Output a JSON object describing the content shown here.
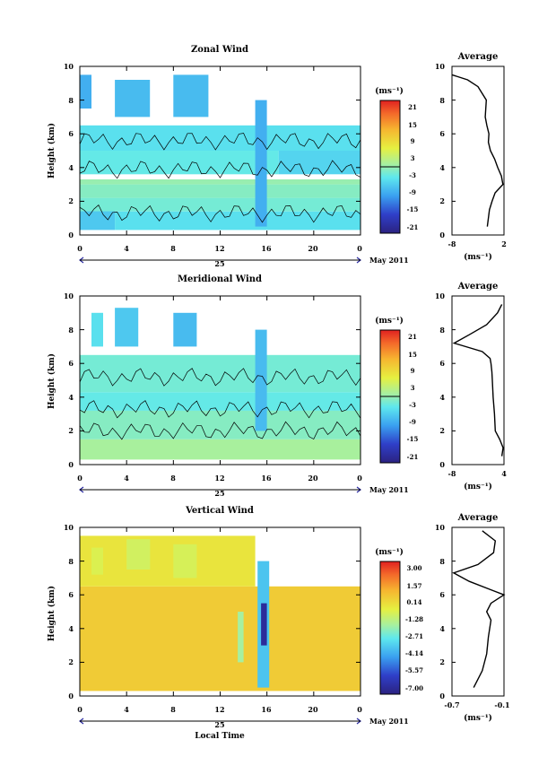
{
  "figure": {
    "date_label": "May 2011",
    "day_label": "25",
    "xlabel": "Local Time",
    "units": "(ms⁻¹)"
  },
  "panels": [
    {
      "title": "Zonal Wind",
      "ylabel": "Height (km)",
      "cbar_title": "(ms⁻¹)",
      "avg_title": "Average",
      "avg_xlabel": "(ms⁻¹)",
      "x_ticks": [
        "0",
        "4",
        "8",
        "12",
        "16",
        "20",
        "0"
      ],
      "y_ticks": [
        "0",
        "2",
        "4",
        "6",
        "8",
        "10"
      ],
      "cbar_ticks": [
        "21",
        "15",
        "9",
        "3",
        "-3",
        "-9",
        "-15",
        "-21"
      ],
      "avg_x_ticks": [
        "-8",
        "2"
      ]
    },
    {
      "title": "Meridional Wind",
      "ylabel": "Height (km)",
      "cbar_title": "(ms⁻¹)",
      "avg_title": "Average",
      "avg_xlabel": "(ms⁻¹)",
      "x_ticks": [
        "0",
        "4",
        "8",
        "12",
        "16",
        "20",
        "0"
      ],
      "y_ticks": [
        "0",
        "2",
        "4",
        "6",
        "8",
        "10"
      ],
      "cbar_ticks": [
        "21",
        "15",
        "9",
        "3",
        "-3",
        "-9",
        "-15",
        "-21"
      ],
      "avg_x_ticks": [
        "-8",
        "4"
      ]
    },
    {
      "title": "Vertical Wind",
      "ylabel": "Height (km)",
      "cbar_title": "(ms⁻¹)",
      "avg_title": "Average",
      "avg_xlabel": "(ms⁻¹)",
      "x_ticks": [
        "0",
        "4",
        "8",
        "12",
        "16",
        "20",
        "0"
      ],
      "y_ticks": [
        "0",
        "2",
        "4",
        "6",
        "8",
        "10"
      ],
      "cbar_ticks": [
        "3.00",
        "1.57",
        "0.14",
        "-1.28",
        "-2.71",
        "-4.14",
        "-5.57",
        "-7.00"
      ],
      "avg_x_ticks": [
        "-0.7",
        "-0.1"
      ]
    }
  ],
  "chart_data": [
    {
      "type": "heatmap",
      "title": "Zonal Wind",
      "xlabel": "",
      "ylabel": "Height (km)",
      "xlim": [
        0,
        24
      ],
      "ylim": [
        0,
        10
      ],
      "colorbar_range": [
        -21,
        21
      ],
      "cells": [
        {
          "x0": 0,
          "x1": 3,
          "y0": 0.3,
          "y1": 2.0,
          "v": -6
        },
        {
          "x0": 3,
          "x1": 24,
          "y0": 0.3,
          "y1": 1.4,
          "v": -4
        },
        {
          "x0": 0,
          "x1": 24,
          "y0": 1.4,
          "y1": 2.2,
          "v": -2
        },
        {
          "x0": 0,
          "x1": 24,
          "y0": 2.2,
          "y1": 3.0,
          "v": -1
        },
        {
          "x0": 0,
          "x1": 24,
          "y0": 3.0,
          "y1": 3.3,
          "v": 0
        },
        {
          "x0": 0,
          "x1": 17,
          "y0": 3.6,
          "y1": 5.0,
          "v": -3
        },
        {
          "x0": 17,
          "x1": 24,
          "y0": 3.6,
          "y1": 5.0,
          "v": -5
        },
        {
          "x0": 0,
          "x1": 24,
          "y0": 5.0,
          "y1": 6.5,
          "v": -4
        },
        {
          "x0": 0,
          "x1": 1,
          "y0": 7.5,
          "y1": 9.5,
          "v": -8
        },
        {
          "x0": 3,
          "x1": 6,
          "y0": 7.0,
          "y1": 9.2,
          "v": -7
        },
        {
          "x0": 8,
          "x1": 11,
          "y0": 7.0,
          "y1": 9.5,
          "v": -7
        },
        {
          "x0": 15,
          "x1": 16,
          "y0": 0.5,
          "y1": 8.0,
          "v": -8
        }
      ],
      "profile_x": [
        -1.2,
        -1.0,
        -0.8,
        -0.3,
        0.3,
        1.8,
        1.5,
        0.8,
        0.2,
        -0.6,
        -1.0,
        -0.9,
        -1.3,
        -1.6,
        -1.4,
        -3.0,
        -5.0,
        -8.0
      ],
      "profile_y": [
        0.5,
        1.0,
        1.5,
        2.0,
        2.5,
        3.0,
        3.5,
        4.0,
        4.5,
        5.0,
        5.5,
        6.0,
        6.5,
        7.0,
        8.0,
        8.8,
        9.2,
        9.5
      ],
      "profile_xlim": [
        -8,
        2
      ]
    },
    {
      "type": "heatmap",
      "title": "Meridional Wind",
      "xlabel": "",
      "ylabel": "Height (km)",
      "xlim": [
        0,
        24
      ],
      "ylim": [
        0,
        10
      ],
      "colorbar_range": [
        -21,
        21
      ],
      "cells": [
        {
          "x0": 0,
          "x1": 24,
          "y0": 0.3,
          "y1": 1.5,
          "v": 1
        },
        {
          "x0": 0,
          "x1": 24,
          "y0": 1.5,
          "y1": 3.2,
          "v": -1
        },
        {
          "x0": 0,
          "x1": 24,
          "y0": 3.2,
          "y1": 4.3,
          "v": -3
        },
        {
          "x0": 0,
          "x1": 24,
          "y0": 4.3,
          "y1": 6.5,
          "v": -2
        },
        {
          "x0": 1,
          "x1": 2,
          "y0": 7.0,
          "y1": 9.0,
          "v": -4
        },
        {
          "x0": 3,
          "x1": 5,
          "y0": 7.0,
          "y1": 9.3,
          "v": -6
        },
        {
          "x0": 8,
          "x1": 10,
          "y0": 7.0,
          "y1": 9.0,
          "v": -7
        },
        {
          "x0": 15,
          "x1": 16,
          "y0": 2.0,
          "y1": 8.0,
          "v": -7
        }
      ],
      "profile_x": [
        3.5,
        3.8,
        3.0,
        2.0,
        1.8,
        1.5,
        1.3,
        1.2,
        1.0,
        0.8,
        -1.0,
        -7.5,
        -4.0,
        0.0,
        2.5,
        3.5
      ],
      "profile_y": [
        0.5,
        1.0,
        1.5,
        2.0,
        3.0,
        4.0,
        5.0,
        5.5,
        6.0,
        6.3,
        6.7,
        7.2,
        7.7,
        8.3,
        9.0,
        9.5
      ],
      "profile_xlim": [
        -8,
        4
      ]
    },
    {
      "type": "heatmap",
      "title": "Vertical Wind",
      "xlabel": "Local Time",
      "ylabel": "Height (km)",
      "xlim": [
        0,
        24
      ],
      "ylim": [
        0,
        10
      ],
      "colorbar_range": [
        -7.0,
        3.0
      ],
      "cells": [
        {
          "x0": 0,
          "x1": 24,
          "y0": 0.3,
          "y1": 6.5,
          "v": 0.3
        },
        {
          "x0": 0,
          "x1": 15,
          "y0": 6.5,
          "y1": 9.5,
          "v": -0.3
        },
        {
          "x0": 1,
          "x1": 2,
          "y0": 7.2,
          "y1": 8.8,
          "v": -0.8
        },
        {
          "x0": 4,
          "x1": 6,
          "y0": 7.5,
          "y1": 9.3,
          "v": -1.0
        },
        {
          "x0": 8,
          "x1": 10,
          "y0": 7.0,
          "y1": 9.0,
          "v": -0.9
        },
        {
          "x0": 15.2,
          "x1": 16.2,
          "y0": 0.5,
          "y1": 8.0,
          "v": -3.5
        },
        {
          "x0": 15.5,
          "x1": 16.0,
          "y0": 3.0,
          "y1": 5.5,
          "v": -6.5
        },
        {
          "x0": 13.5,
          "x1": 14.0,
          "y0": 2.0,
          "y1": 5.0,
          "v": -1.8
        }
      ],
      "profile_x": [
        -0.45,
        -0.35,
        -0.3,
        -0.28,
        -0.25,
        -0.3,
        -0.25,
        -0.1,
        -0.25,
        -0.5,
        -0.68,
        -0.4,
        -0.22,
        -0.2,
        -0.35
      ],
      "profile_y": [
        0.5,
        1.5,
        2.5,
        3.5,
        4.5,
        5.0,
        5.5,
        6.0,
        6.3,
        6.8,
        7.3,
        7.8,
        8.5,
        9.2,
        9.8
      ],
      "profile_xlim": [
        -0.7,
        -0.1
      ]
    }
  ]
}
